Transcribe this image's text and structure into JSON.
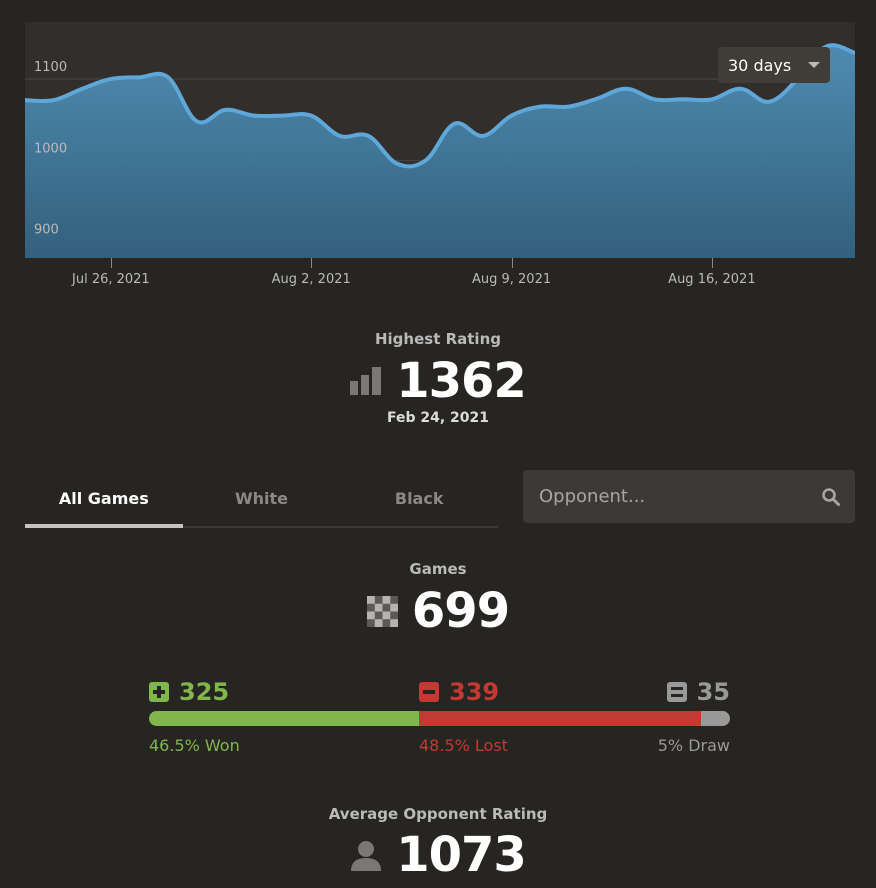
{
  "chart": {
    "type": "area",
    "y_ticks": [
      "1100",
      "1000",
      "900"
    ],
    "x_labels": [
      "Jul 26, 2021",
      "Aug 2, 2021",
      "Aug 9, 2021",
      "Aug 16, 2021"
    ],
    "ylim": [
      880,
      1170
    ],
    "range_label": "30 days",
    "line_color": "#5fa7d9",
    "fill_color_top": "#4e8bb1",
    "fill_color_bottom": "#33607c",
    "values": [
      [
        0,
        1074
      ],
      [
        1,
        1074
      ],
      [
        2,
        1088
      ],
      [
        3,
        1100
      ],
      [
        4,
        1102
      ],
      [
        5,
        1102
      ],
      [
        6,
        1048
      ],
      [
        7,
        1062
      ],
      [
        8,
        1055
      ],
      [
        9,
        1055
      ],
      [
        10,
        1055
      ],
      [
        11,
        1030
      ],
      [
        12,
        1030
      ],
      [
        13,
        996
      ],
      [
        14,
        1000
      ],
      [
        15,
        1045
      ],
      [
        16,
        1030
      ],
      [
        17,
        1055
      ],
      [
        18,
        1066
      ],
      [
        19,
        1066
      ],
      [
        20,
        1076
      ],
      [
        21,
        1088
      ],
      [
        22,
        1075
      ],
      [
        23,
        1075
      ],
      [
        24,
        1075
      ],
      [
        25,
        1088
      ],
      [
        26,
        1072
      ],
      [
        27,
        1100
      ],
      [
        28,
        1140
      ],
      [
        29,
        1132
      ]
    ]
  },
  "highest_rating": {
    "title": "Highest Rating",
    "value": "1362",
    "date": "Feb 24, 2021",
    "icon": "bar-chart-icon"
  },
  "tabs": [
    {
      "label": "All Games",
      "active": true
    },
    {
      "label": "White",
      "active": false
    },
    {
      "label": "Black",
      "active": false
    }
  ],
  "search": {
    "placeholder": "Opponent...",
    "icon": "search-icon"
  },
  "games": {
    "title": "Games",
    "value": "699",
    "icon": "chessboard-icon"
  },
  "results": {
    "won": {
      "count": "325",
      "label": "46.5% Won",
      "pct": 46.5,
      "color": "#81b64c"
    },
    "lost": {
      "count": "339",
      "label": "48.5% Lost",
      "pct": 48.5,
      "color": "#c33a32"
    },
    "draw": {
      "count": "35",
      "label": "5% Draw",
      "pct": 5,
      "color": "#999999"
    }
  },
  "avg_opponent": {
    "title": "Average Opponent Rating",
    "value": "1073",
    "icon": "user-icon"
  }
}
